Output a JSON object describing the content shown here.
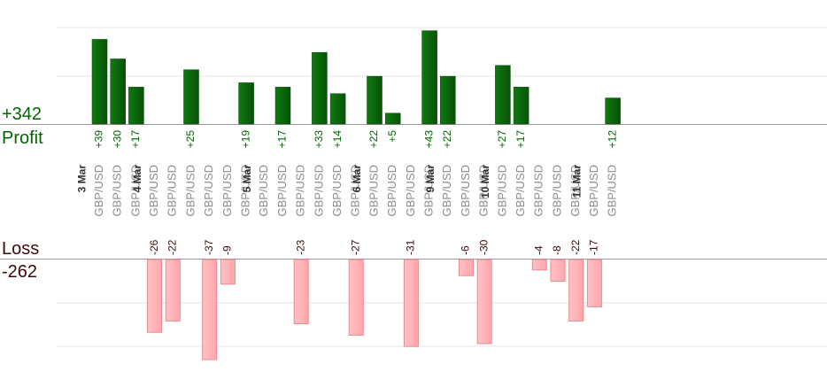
{
  "summary": {
    "profit_total": "+342",
    "profit_label": "Profit",
    "loss_label": "Loss",
    "loss_total": "-262"
  },
  "colors": {
    "profit_bar": "#0b6a0b",
    "profit_text": "#006400",
    "loss_bar": "#ffb3b6",
    "loss_bar_border": "#e88a8f",
    "loss_text": "#3b0a0a",
    "pair_text": "#8c8c8c",
    "date_text": "#333333",
    "gridline": "#e6e6e6",
    "axis": "#999999"
  },
  "chart_data": {
    "type": "bar",
    "title": "",
    "xlabel": "",
    "ylabel": "",
    "note": "Trades per day; green bars extend up for profit, pink bars extend down for loss; bars clipped at chart edges",
    "trades": [
      {
        "date": "3 Mar",
        "pair": "GBP/USD",
        "value": 39
      },
      {
        "pair": "GBP/USD",
        "value": 30
      },
      {
        "pair": "GBP/USD",
        "value": 17
      },
      {
        "date": "4 Mar",
        "pair": "GBP/USD",
        "value": -26
      },
      {
        "pair": "GBP/USD",
        "value": -22
      },
      {
        "pair": "GBP/USD",
        "value": 25
      },
      {
        "pair": "GBP/USD",
        "value": -37
      },
      {
        "pair": "GBP/USD",
        "value": -9
      },
      {
        "pair": "GBP/USD",
        "value": 19
      },
      {
        "date": "5 Mar",
        "pair": "GBP/USD",
        "value": null
      },
      {
        "pair": "GBP/USD",
        "value": 17
      },
      {
        "pair": "GBP/USD",
        "value": -23
      },
      {
        "pair": "GBP/USD",
        "value": 33
      },
      {
        "pair": "GBP/USD",
        "value": 14
      },
      {
        "pair": "GBP/USD",
        "value": -27
      },
      {
        "date": "6 Mar",
        "pair": "GBP/USD",
        "value": 22
      },
      {
        "pair": "GBP/USD",
        "value": 5
      },
      {
        "pair": "GBP/USD",
        "value": -31
      },
      {
        "pair": "GBP/USD",
        "value": 43
      },
      {
        "date": "9 Mar",
        "pair": "GBP/USD",
        "value": 22
      },
      {
        "pair": "GBP/USD",
        "value": -6
      },
      {
        "pair": "GBP/USD",
        "value": -30
      },
      {
        "date": "10 Mar",
        "pair": "GBP/USD",
        "value": 27
      },
      {
        "pair": "GBP/USD",
        "value": 17
      },
      {
        "pair": "GBP/USD",
        "value": -4
      },
      {
        "pair": "GBP/USD",
        "value": -8
      },
      {
        "pair": "GBP/USD",
        "value": -22
      },
      {
        "date": "11 Mar",
        "pair": "GBP/USD",
        "value": -17
      },
      {
        "pair": "GBP/USD",
        "value": 12
      }
    ]
  }
}
